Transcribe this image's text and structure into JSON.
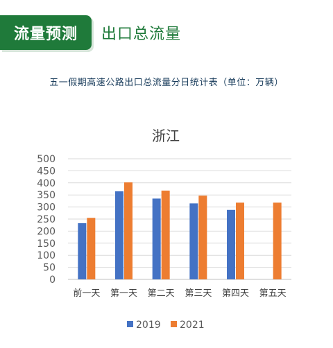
{
  "header": {
    "badge": "流量预测",
    "heading": "出口总流量"
  },
  "subtitle": "五一假期高速公路出口总流量分日统计表（单位：万辆）",
  "chart_data": {
    "type": "bar",
    "title": "浙江",
    "categories": [
      "前一天",
      "第一天",
      "第二天",
      "第三天",
      "第四天",
      "第五天"
    ],
    "series": [
      {
        "name": "2019",
        "color": "#4472c4",
        "values": [
          233,
          365,
          335,
          315,
          288,
          null
        ]
      },
      {
        "name": "2021",
        "color": "#ed7d31",
        "values": [
          255,
          402,
          368,
          347,
          318,
          318
        ]
      }
    ],
    "ylim": [
      0,
      500
    ],
    "yticks": [
      0,
      50,
      100,
      150,
      200,
      250,
      300,
      350,
      400,
      450,
      500
    ],
    "grid": true,
    "legend": "bottom"
  }
}
